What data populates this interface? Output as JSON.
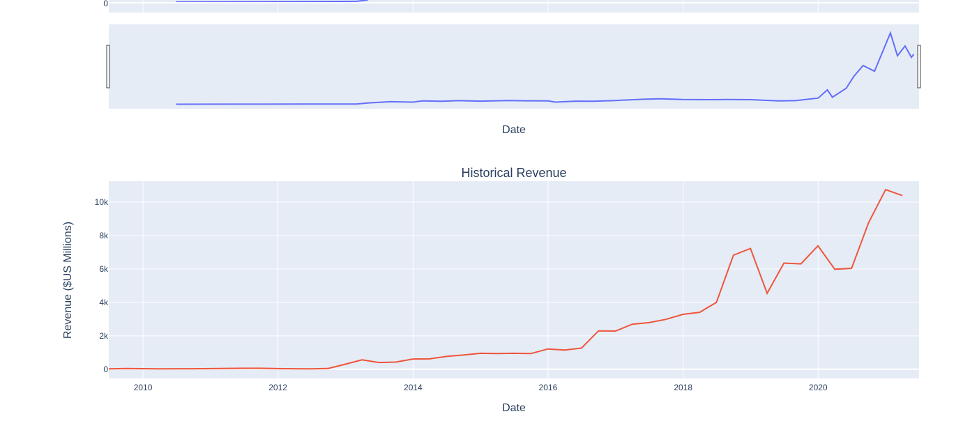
{
  "colors": {
    "plot_bg": "#e5ecf6",
    "grid": "#ffffff",
    "price_line": "#636efa",
    "revenue_line": "#ef553b",
    "text": "#2a3f5f",
    "handle_stroke": "#444444"
  },
  "top_chart": {
    "visible_tick_label": "0",
    "xlabel": "Date",
    "range_slider": "present"
  },
  "chart_data": [
    {
      "type": "line",
      "title": "",
      "xlabel": "Date",
      "ylabel": "",
      "note_visible": "cropped upper chart; only the range slider and a '0' y tick are visible",
      "series": [
        {
          "values_x": [
            "2010-06-29",
            "2011-06-01",
            "2012-06-01",
            "2013-03-01",
            "2013-05-01",
            "2013-09-01",
            "2014-01-01",
            "2014-02-20",
            "2014-06-01",
            "2014-09-01",
            "2015-01-01",
            "2015-06-01",
            "2015-09-01",
            "2016-01-01",
            "2016-02-10",
            "2016-06-01",
            "2016-09-01",
            "2017-01-01",
            "2017-06-01",
            "2017-09-01",
            "2018-01-01",
            "2018-06-01",
            "2018-09-01",
            "2019-01-01",
            "2019-06-01",
            "2019-09-01",
            "2020-01-01",
            "2020-02-20",
            "2020-03-18",
            "2020-06-01",
            "2020-07-13",
            "2020-08-31",
            "2020-11-01",
            "2021-01-26",
            "2021-03-05",
            "2021-04-15",
            "2021-05-20",
            "2021-06-01"
          ],
          "values_y": [
            4,
            5,
            6,
            7,
            20,
            35,
            30,
            45,
            40,
            48,
            42,
            50,
            46,
            45,
            30,
            42,
            40,
            50,
            65,
            70,
            62,
            60,
            62,
            60,
            45,
            48,
            80,
            180,
            90,
            200,
            350,
            480,
            410,
            880,
            600,
            720,
            580,
            620
          ]
        }
      ],
      "ylim": [
        0,
        900
      ]
    },
    {
      "type": "line",
      "title": "Historical Revenue",
      "xlabel": "Date",
      "ylabel": "Revenue ($US Millions)",
      "xlim": [
        "2009-06-30",
        "2021-06-30"
      ],
      "ylim": [
        -550,
        11250
      ],
      "x_ticks": [
        "2010",
        "2012",
        "2014",
        "2016",
        "2018",
        "2020"
      ],
      "y_ticks": [
        "0",
        "2k",
        "4k",
        "6k",
        "8k",
        "10k"
      ],
      "grid": true,
      "series": [
        {
          "x": [
            "2009-06-30",
            "2009-09-30",
            "2009-12-31",
            "2010-03-31",
            "2010-06-30",
            "2010-09-30",
            "2010-12-31",
            "2011-03-31",
            "2011-06-30",
            "2011-09-30",
            "2011-12-31",
            "2012-03-31",
            "2012-06-30",
            "2012-09-30",
            "2012-12-31",
            "2013-03-31",
            "2013-06-30",
            "2013-09-30",
            "2013-12-31",
            "2014-03-31",
            "2014-06-30",
            "2014-09-30",
            "2014-12-31",
            "2015-03-31",
            "2015-06-30",
            "2015-09-30",
            "2015-12-31",
            "2016-03-31",
            "2016-06-30",
            "2016-09-30",
            "2016-12-31",
            "2017-03-31",
            "2017-06-30",
            "2017-09-30",
            "2017-12-31",
            "2018-03-31",
            "2018-06-30",
            "2018-09-30",
            "2018-12-31",
            "2019-03-31",
            "2019-06-30",
            "2019-09-30",
            "2019-12-31",
            "2020-03-31",
            "2020-06-30",
            "2020-09-30",
            "2020-12-31",
            "2021-03-31"
          ],
          "y": [
            27,
            46,
            33,
            21,
            28,
            31,
            36,
            49,
            58,
            58,
            39,
            30,
            27,
            50,
            306,
            562,
            405,
            431,
            615,
            621,
            769,
            852,
            957,
            940,
            955,
            937,
            1214,
            1147,
            1270,
            2298,
            2285,
            2696,
            2790,
            2985,
            3288,
            3409,
            4002,
            6824,
            7226,
            4541,
            6350,
            6303,
            7384,
            5985,
            6036,
            8771,
            10744,
            10389
          ]
        }
      ]
    }
  ]
}
